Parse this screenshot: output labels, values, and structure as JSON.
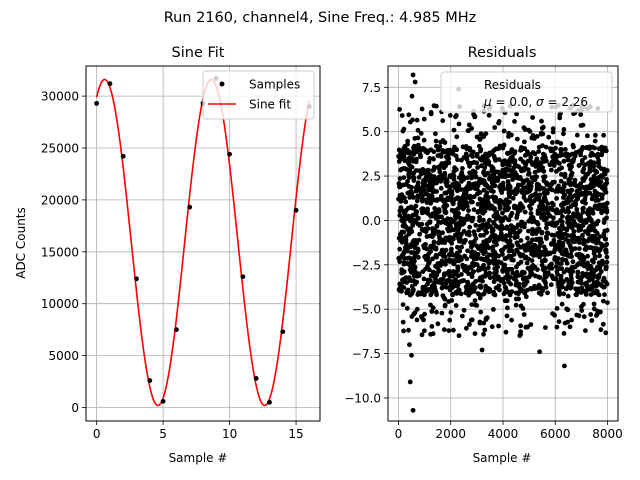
{
  "figure": {
    "suptitle": "Run 2160, channel4, Sine Freq.: 4.985 MHz"
  },
  "colors": {
    "sine_fit": "#ff0000",
    "points": "#000000",
    "grid": "#b0b0b0"
  },
  "chart_data": [
    {
      "type": "line",
      "title": "Sine Fit",
      "xlabel": "Sample #",
      "ylabel": "ADC Counts",
      "xlim": [
        -0.8,
        16.8
      ],
      "ylim": [
        -1300,
        32900
      ],
      "xticks": [
        0,
        5,
        10,
        15
      ],
      "yticks": [
        0,
        5000,
        10000,
        15000,
        20000,
        25000,
        30000
      ],
      "grid": true,
      "legend": {
        "placement": "upper-right",
        "entries": [
          "Samples",
          "Sine fit"
        ]
      },
      "series": [
        {
          "name": "Samples",
          "style": "markers",
          "x": [
            0,
            1,
            2,
            3,
            4,
            5,
            6,
            7,
            8,
            9,
            10,
            11,
            12,
            13,
            14,
            15,
            16
          ],
          "y": [
            29300,
            31200,
            24200,
            12400,
            2600,
            600,
            7500,
            19300,
            29300,
            31700,
            24400,
            12600,
            2800,
            500,
            7300,
            19000,
            29000
          ]
        },
        {
          "name": "Sine fit",
          "style": "line",
          "function": "offset + amplitude * sin(2*pi*x/period + phase)",
          "amplitude": 15700,
          "offset": 15900,
          "period": 8.025,
          "phase": 1.1,
          "x_range": [
            0,
            16
          ]
        }
      ]
    },
    {
      "type": "scatter",
      "title": "Residuals",
      "xlabel": "Sample #",
      "ylabel": "",
      "xlim": [
        -400,
        8400
      ],
      "ylim": [
        -11.3,
        8.7
      ],
      "xticks": [
        0,
        2000,
        4000,
        6000,
        8000
      ],
      "yticks": [
        -10.0,
        -7.5,
        -5.0,
        -2.5,
        0.0,
        2.5,
        5.0,
        7.5
      ],
      "grid": true,
      "legend": {
        "placement": "upper-right",
        "entries": [
          "Residuals",
          "$\\mu$ = 0.0, $\\sigma$ = 2.26"
        ]
      },
      "series": [
        {
          "name": "Residuals",
          "count": 8000,
          "mean": 0.0,
          "std": 2.26,
          "x_range": [
            0,
            8000
          ],
          "distribution": "uniform-like within +/-5.0 with sparse outliers to -10.7 and +8.2",
          "outliers": [
            {
              "x": 560,
              "y": 8.2
            },
            {
              "x": 640,
              "y": 7.8
            },
            {
              "x": 520,
              "y": 7.0
            },
            {
              "x": 2300,
              "y": 7.4
            },
            {
              "x": 420,
              "y": -7.0
            },
            {
              "x": 500,
              "y": -7.6
            },
            {
              "x": 450,
              "y": -9.1
            },
            {
              "x": 560,
              "y": -10.7
            },
            {
              "x": 6350,
              "y": -8.2
            },
            {
              "x": 3200,
              "y": -7.3
            },
            {
              "x": 5400,
              "y": -7.4
            }
          ]
        }
      ]
    }
  ]
}
